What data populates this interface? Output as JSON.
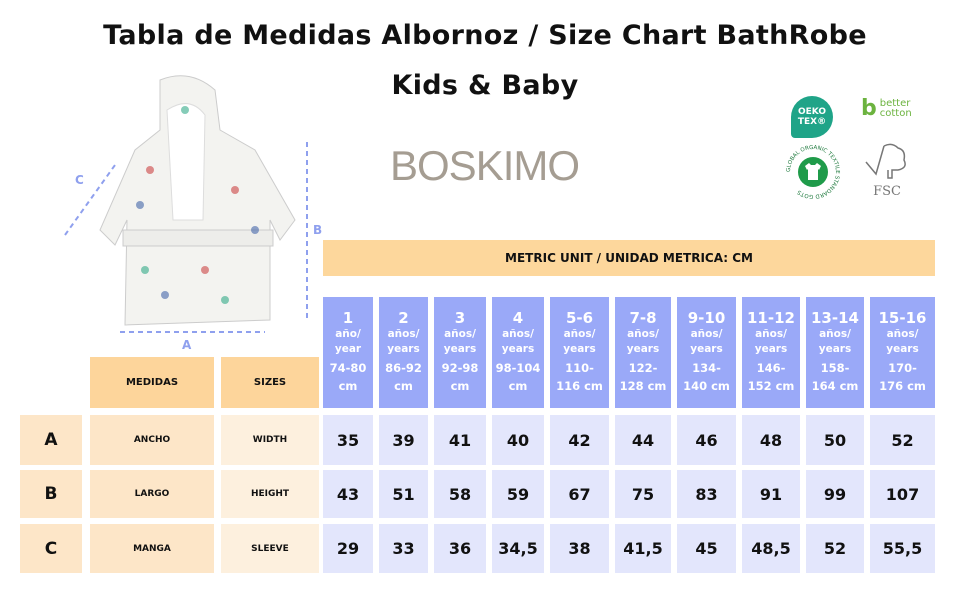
{
  "title_line1": "Tabla de Medidas Albornoz / Size Chart BathRobe",
  "title_line2": "Kids & Baby",
  "brand": "BOSKIMO",
  "certifications": {
    "oeko_tex": "OEKO TEX®",
    "better_cotton": "better cotton",
    "gots": "GLOBAL ORGANIC TEXTILE STANDARD GOTS",
    "fsc": "FSC"
  },
  "illustration_labels": {
    "a": "A",
    "b": "B",
    "c": "C"
  },
  "banner": "METRIC UNIT / UNIDAD METRICA: CM",
  "headers": {
    "medidas": "MEDIDAS",
    "sizes": "SIZES"
  },
  "columns": [
    {
      "age": "1",
      "label": "año/ year",
      "height": "74-80 cm"
    },
    {
      "age": "2",
      "label": "años/ years",
      "height": "86-92 cm"
    },
    {
      "age": "3",
      "label": "años/ years",
      "height": "92-98 cm"
    },
    {
      "age": "4",
      "label": "años/ years",
      "height": "98-104 cm"
    },
    {
      "age": "5-6",
      "label": "años/ years",
      "height": "110-116 cm"
    },
    {
      "age": "7-8",
      "label": "años/ years",
      "height": "122-128 cm"
    },
    {
      "age": "9-10",
      "label": "años/ years",
      "height": "134-140 cm"
    },
    {
      "age": "11-12",
      "label": "años/ years",
      "height": "146-152 cm"
    },
    {
      "age": "13-14",
      "label": "años/ years",
      "height": "158-164 cm"
    },
    {
      "age": "15-16",
      "label": "años/ years",
      "height": "170-176 cm"
    }
  ],
  "rows": [
    {
      "letter": "A",
      "medida": "ANCHO",
      "size": "WIDTH",
      "values": [
        "35",
        "39",
        "41",
        "40",
        "42",
        "44",
        "46",
        "48",
        "50",
        "52"
      ]
    },
    {
      "letter": "B",
      "medida": "LARGO",
      "size": "HEIGHT",
      "values": [
        "43",
        "51",
        "58",
        "59",
        "67",
        "75",
        "83",
        "91",
        "99",
        "107"
      ]
    },
    {
      "letter": "C",
      "medida": "MANGA",
      "size": "SLEEVE",
      "values": [
        "29",
        "33",
        "36",
        "34,5",
        "38",
        "41,5",
        "45",
        "48,5",
        "52",
        "55,5"
      ]
    }
  ],
  "colors": {
    "header_blue": "#9aa9f8",
    "value_bg": "#e3e6fc",
    "orange": "#fdd59b",
    "peach": "#fde6c8"
  }
}
